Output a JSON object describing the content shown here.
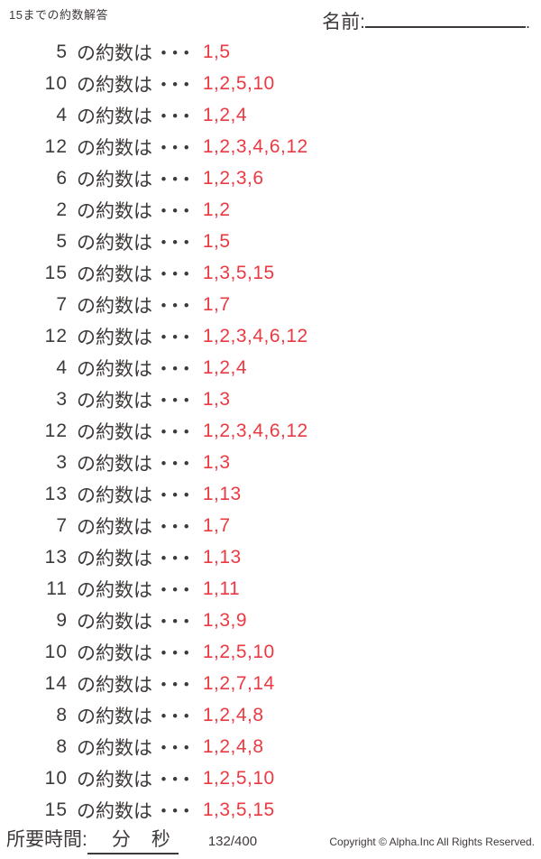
{
  "header": {
    "title": "15までの約数解答",
    "name_label": "名前:",
    "name_line_end": "."
  },
  "problem_label": "の約数は",
  "problem_dots": "・・・",
  "problems": [
    {
      "number": "5",
      "answer": "1,5"
    },
    {
      "number": "10",
      "answer": "1,2,5,10"
    },
    {
      "number": "4",
      "answer": "1,2,4"
    },
    {
      "number": "12",
      "answer": "1,2,3,4,6,12"
    },
    {
      "number": "6",
      "answer": "1,2,3,6"
    },
    {
      "number": "2",
      "answer": "1,2"
    },
    {
      "number": "5",
      "answer": "1,5"
    },
    {
      "number": "15",
      "answer": "1,3,5,15"
    },
    {
      "number": "7",
      "answer": "1,7"
    },
    {
      "number": "12",
      "answer": "1,2,3,4,6,12"
    },
    {
      "number": "4",
      "answer": "1,2,4"
    },
    {
      "number": "3",
      "answer": "1,3"
    },
    {
      "number": "12",
      "answer": "1,2,3,4,6,12"
    },
    {
      "number": "3",
      "answer": "1,3"
    },
    {
      "number": "13",
      "answer": "1,13"
    },
    {
      "number": "7",
      "answer": "1,7"
    },
    {
      "number": "13",
      "answer": "1,13"
    },
    {
      "number": "11",
      "answer": "1,11"
    },
    {
      "number": "9",
      "answer": "1,3,9"
    },
    {
      "number": "10",
      "answer": "1,2,5,10"
    },
    {
      "number": "14",
      "answer": "1,2,7,14"
    },
    {
      "number": "8",
      "answer": "1,2,4,8"
    },
    {
      "number": "8",
      "answer": "1,2,4,8"
    },
    {
      "number": "10",
      "answer": "1,2,5,10"
    },
    {
      "number": "15",
      "answer": "1,3,5,15"
    }
  ],
  "footer": {
    "time_label": "所要時間:",
    "minutes_label": "分",
    "seconds_label": "秒",
    "page_number": "132/400",
    "copyright": "Copyright ©  Alpha.Inc All Rights Reserved."
  },
  "colors": {
    "text": "#3e3a39",
    "answer_red": "#ea3a42"
  }
}
